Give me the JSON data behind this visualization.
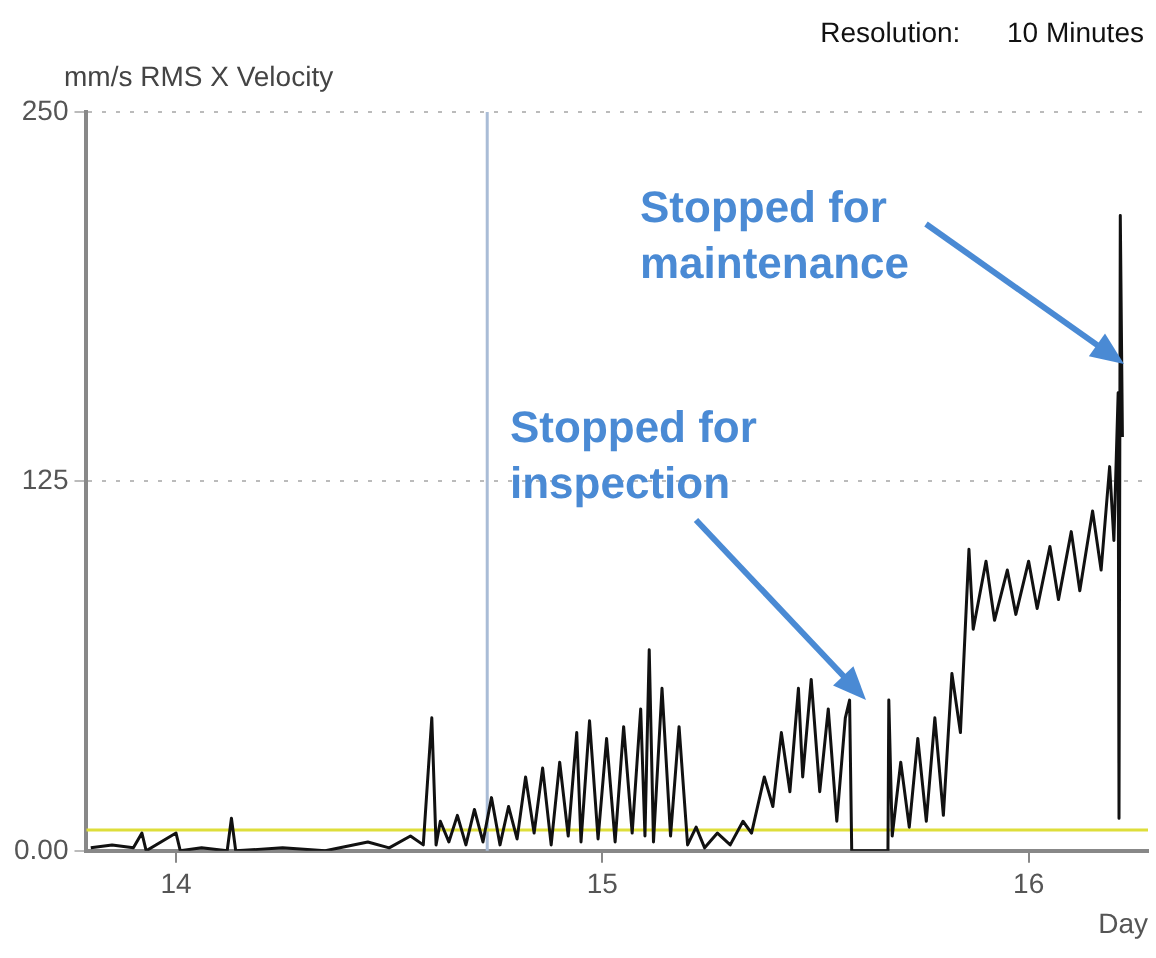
{
  "chart_data": {
    "type": "line",
    "ylabel": "mm/s RMS X Velocity",
    "xlabel": "Day",
    "xlim": [
      13.79,
      16.28
    ],
    "xticks": [
      14,
      15,
      16
    ],
    "ylim": [
      0,
      250
    ],
    "yticks": [
      {
        "value": 0,
        "label": "0.00"
      },
      125,
      250
    ],
    "grid": "y",
    "legend": false,
    "marker": "none",
    "line_style": "solid",
    "series": [
      {
        "color": "#111111",
        "x": [
          13.8,
          13.85,
          13.9,
          13.92,
          13.93,
          14.0,
          14.01,
          14.06,
          14.12,
          14.13,
          14.14,
          14.25,
          14.35,
          14.45,
          14.5,
          14.55,
          14.58,
          14.6,
          14.61,
          14.62,
          14.64,
          14.66,
          14.68,
          14.7,
          14.72,
          14.74,
          14.76,
          14.78,
          14.8,
          14.82,
          14.84,
          14.86,
          14.88,
          14.9,
          14.92,
          14.94,
          14.95,
          14.97,
          14.99,
          15.01,
          15.03,
          15.05,
          15.07,
          15.09,
          15.1,
          15.11,
          15.12,
          15.14,
          15.16,
          15.18,
          15.2,
          15.22,
          15.24,
          15.27,
          15.3,
          15.33,
          15.35,
          15.38,
          15.4,
          15.42,
          15.44,
          15.46,
          15.47,
          15.49,
          15.51,
          15.53,
          15.55,
          15.57,
          15.58,
          15.585,
          15.67,
          15.672,
          15.68,
          15.7,
          15.72,
          15.74,
          15.76,
          15.78,
          15.8,
          15.82,
          15.84,
          15.86,
          15.87,
          15.9,
          15.92,
          15.95,
          15.97,
          16.0,
          16.02,
          16.05,
          16.07,
          16.1,
          16.12,
          16.15,
          16.17,
          16.19,
          16.2,
          16.21,
          16.212,
          16.215,
          16.22
        ],
        "values": [
          1,
          2,
          1,
          6,
          0,
          6,
          0,
          1,
          0,
          11,
          0,
          1,
          0,
          3,
          1,
          5,
          2,
          45,
          2,
          10,
          3,
          12,
          2,
          14,
          3,
          18,
          2,
          15,
          4,
          25,
          6,
          28,
          2,
          30,
          5,
          40,
          3,
          44,
          4,
          38,
          3,
          42,
          6,
          48,
          5,
          68,
          3,
          55,
          5,
          42,
          2,
          8,
          1,
          6,
          2,
          10,
          6,
          25,
          15,
          40,
          20,
          55,
          25,
          58,
          20,
          48,
          10,
          45,
          51,
          0,
          0,
          51,
          5,
          30,
          8,
          38,
          10,
          45,
          12,
          60,
          40,
          102,
          75,
          98,
          78,
          95,
          80,
          98,
          82,
          103,
          85,
          108,
          88,
          115,
          95,
          130,
          105,
          155,
          11,
          215,
          140
        ]
      }
    ],
    "ref_lines": [
      {
        "axis": "x",
        "value": 14.73,
        "color": "#a9bcd6"
      },
      {
        "axis": "y",
        "value": 7,
        "color": "#dede3a"
      }
    ],
    "annotations": [
      "Resolution:      10 Minutes",
      "Stopped for\ninspection",
      "Stopped for\nmaintenance"
    ]
  }
}
